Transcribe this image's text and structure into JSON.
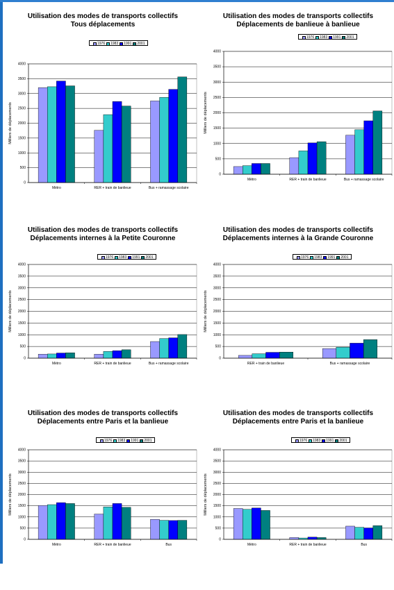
{
  "colors": {
    "series": [
      "#9999ff",
      "#33cccc",
      "#0000ff",
      "#008080"
    ],
    "plot_bg": "#ffffff",
    "grid": "#000000",
    "frame": "#1e6fc0"
  },
  "chart_data": [
    {
      "type": "bar",
      "title": "Utilisation des modes de transports collectifs",
      "subtitle": "Tous déplacements",
      "ylabel": "Milliers de déplacements",
      "xlabel": "",
      "ylim": [
        0,
        4000
      ],
      "yticks": [
        "0",
        "500",
        "1000",
        "1500",
        "2000",
        "2500",
        "3000",
        "3500",
        "4000"
      ],
      "legend_position": "top",
      "categories": [
        "Métro",
        "RER + train de banlieue",
        "Bus + ramassage scolaire"
      ],
      "series": [
        {
          "name": "1976",
          "values": [
            3200,
            1760,
            2750
          ]
        },
        {
          "name": "1983",
          "values": [
            3230,
            2290,
            2870
          ]
        },
        {
          "name": "1991",
          "values": [
            3420,
            2730,
            3140
          ]
        },
        {
          "name": "2001",
          "values": [
            3260,
            2580,
            3560
          ]
        }
      ]
    },
    {
      "type": "bar",
      "title": "Utilisation des modes de transports collectifs",
      "subtitle": "Déplacements de banlieue à banlieue",
      "ylabel": "Milliers de déplacements",
      "xlabel": "",
      "ylim": [
        0,
        4000
      ],
      "yticks": [
        "0",
        "500",
        "1000",
        "1500",
        "2000",
        "2500",
        "3000",
        "3500",
        "4000"
      ],
      "legend_position": "top",
      "categories": [
        "Métro",
        "RER + train de banlieue",
        "Bus + ramassage scolaire"
      ],
      "series": [
        {
          "name": "1976",
          "values": [
            250,
            540,
            1270
          ]
        },
        {
          "name": "1983",
          "values": [
            280,
            760,
            1450
          ]
        },
        {
          "name": "1991",
          "values": [
            350,
            1020,
            1740
          ]
        },
        {
          "name": "2001",
          "values": [
            350,
            1060,
            2060
          ]
        }
      ]
    },
    {
      "type": "bar",
      "title": "Utilisation des modes de transports collectifs",
      "subtitle": "Déplacements internes à la Petite Couronne",
      "ylabel": "Milliers de déplacements",
      "xlabel": "",
      "ylim": [
        0,
        4000
      ],
      "yticks": [
        "0",
        "500",
        "1000",
        "1500",
        "2000",
        "2500",
        "3000",
        "3500",
        "4000"
      ],
      "legend_position": "top",
      "categories": [
        "Métro",
        "RER + train de banlieue",
        "Bus + ramassage scolaire"
      ],
      "series": [
        {
          "name": "1976",
          "values": [
            170,
            170,
            710
          ]
        },
        {
          "name": "1983",
          "values": [
            180,
            290,
            840
          ]
        },
        {
          "name": "1991",
          "values": [
            220,
            320,
            870
          ]
        },
        {
          "name": "2001",
          "values": [
            230,
            360,
            1010
          ]
        }
      ]
    },
    {
      "type": "bar",
      "title": "Utilisation des modes de transports collectifs",
      "subtitle": "Déplacements internes à la Grande Couronne",
      "ylabel": "Milliers de déplacements",
      "xlabel": "",
      "ylim": [
        0,
        4000
      ],
      "yticks": [
        "0",
        "500",
        "1000",
        "1500",
        "2000",
        "2500",
        "3000",
        "3500",
        "4000"
      ],
      "legend_position": "top",
      "categories": [
        "RER + train de banlieue",
        "Bus + ramassage scolaire"
      ],
      "series": [
        {
          "name": "1976",
          "values": [
            120,
            410
          ]
        },
        {
          "name": "1983",
          "values": [
            190,
            470
          ]
        },
        {
          "name": "1991",
          "values": [
            250,
            640
          ]
        },
        {
          "name": "2001",
          "values": [
            260,
            790
          ]
        }
      ]
    },
    {
      "type": "bar",
      "title": "Utilisation des modes de transports collectifs",
      "subtitle": "Déplacements entre Paris et la banlieue",
      "ylabel": "Milliers de déplacements",
      "xlabel": "",
      "ylim": [
        0,
        4000
      ],
      "yticks": [
        "0",
        "500",
        "1000",
        "1500",
        "2000",
        "2500",
        "3000",
        "3500",
        "4000"
      ],
      "legend_position": "top",
      "categories": [
        "Métro",
        "RER + train de banlieue",
        "Bus"
      ],
      "series": [
        {
          "name": "1976",
          "values": [
            1510,
            1130,
            890
          ]
        },
        {
          "name": "1983",
          "values": [
            1550,
            1450,
            850
          ]
        },
        {
          "name": "1991",
          "values": [
            1640,
            1600,
            840
          ]
        },
        {
          "name": "2001",
          "values": [
            1600,
            1430,
            850
          ]
        }
      ]
    },
    {
      "type": "bar",
      "title": "Utilisation des modes de transports collectifs",
      "subtitle": "Déplacements entre Paris et la banlieue",
      "ylabel": "Milliers de déplacements",
      "xlabel": "",
      "ylim": [
        0,
        4000
      ],
      "yticks": [
        "0",
        "500",
        "1000",
        "1500",
        "2000",
        "2500",
        "3000",
        "3500",
        "4000"
      ],
      "legend_position": "top",
      "categories": [
        "Métro",
        "RER + train de banlieue",
        "Bus"
      ],
      "series": [
        {
          "name": "1976",
          "values": [
            1380,
            80,
            590
          ]
        },
        {
          "name": "1983",
          "values": [
            1340,
            60,
            540
          ]
        },
        {
          "name": "1991",
          "values": [
            1400,
            100,
            510
          ]
        },
        {
          "name": "2001",
          "values": [
            1290,
            80,
            610
          ]
        }
      ]
    }
  ]
}
